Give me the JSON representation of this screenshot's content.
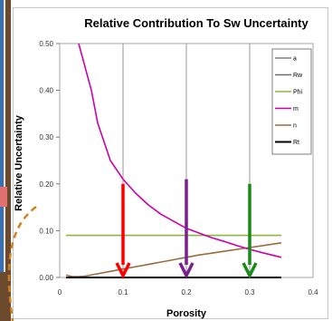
{
  "chart_data": {
    "type": "line",
    "title": "Relative Contribution  To Sw Uncertainty",
    "xlabel": "Porosity",
    "ylabel": "Relative Uncertainty",
    "xlim": [
      0,
      0.4
    ],
    "ylim": [
      0,
      0.5
    ],
    "x_ticks": [
      "0",
      "0.1",
      "0.2",
      "0.3",
      "0.4"
    ],
    "y_ticks": [
      "0.00",
      "0.10",
      "0.20",
      "0.30",
      "0.40",
      "0.50"
    ],
    "grid": "vertical",
    "legend_position": "right",
    "series": [
      {
        "name": "a",
        "color": "#7f7f7f",
        "x": [
          0.01,
          0.35
        ],
        "y": [
          0.0,
          0.0
        ]
      },
      {
        "name": "Rw",
        "color": "#6b6b6b",
        "x": [
          0.01,
          0.35
        ],
        "y": [
          0.0,
          0.0
        ]
      },
      {
        "name": "Phi",
        "color": "#8db63c",
        "x": [
          0.01,
          0.35
        ],
        "y": [
          0.09,
          0.09
        ]
      },
      {
        "name": "m",
        "color": "#cc00a6",
        "x": [
          0.03,
          0.04,
          0.05,
          0.06,
          0.07,
          0.08,
          0.09,
          0.1,
          0.12,
          0.14,
          0.16,
          0.18,
          0.2,
          0.22,
          0.24,
          0.26,
          0.28,
          0.3,
          0.32,
          0.35
        ],
        "y": [
          0.5,
          0.45,
          0.4,
          0.33,
          0.29,
          0.25,
          0.23,
          0.21,
          0.18,
          0.155,
          0.135,
          0.12,
          0.105,
          0.095,
          0.085,
          0.077,
          0.068,
          0.06,
          0.053,
          0.043
        ]
      },
      {
        "name": "n",
        "color": "#9c6b3c",
        "x": [
          0.01,
          0.02,
          0.03,
          0.04,
          0.06,
          0.08,
          0.1,
          0.12,
          0.14,
          0.16,
          0.18,
          0.2,
          0.22,
          0.24,
          0.26,
          0.28,
          0.3,
          0.32,
          0.35
        ],
        "y": [
          0.005,
          0.002,
          0.002,
          0.003,
          0.008,
          0.013,
          0.018,
          0.023,
          0.028,
          0.033,
          0.038,
          0.043,
          0.048,
          0.052,
          0.056,
          0.06,
          0.064,
          0.068,
          0.074
        ]
      },
      {
        "name": "Rt",
        "color": "#000000",
        "x": [
          0.01,
          0.35
        ],
        "y": [
          0.0,
          0.0
        ]
      }
    ],
    "arrows": [
      {
        "color": "#ff0000",
        "x": 0.1,
        "y_top": 0.2,
        "y_bottom": 0.0
      },
      {
        "color": "#7a1f8c",
        "x": 0.2,
        "y_top": 0.21,
        "y_bottom": 0.0
      },
      {
        "color": "#1a8a1a",
        "x": 0.3,
        "y_top": 0.2,
        "y_bottom": 0.0
      }
    ]
  }
}
